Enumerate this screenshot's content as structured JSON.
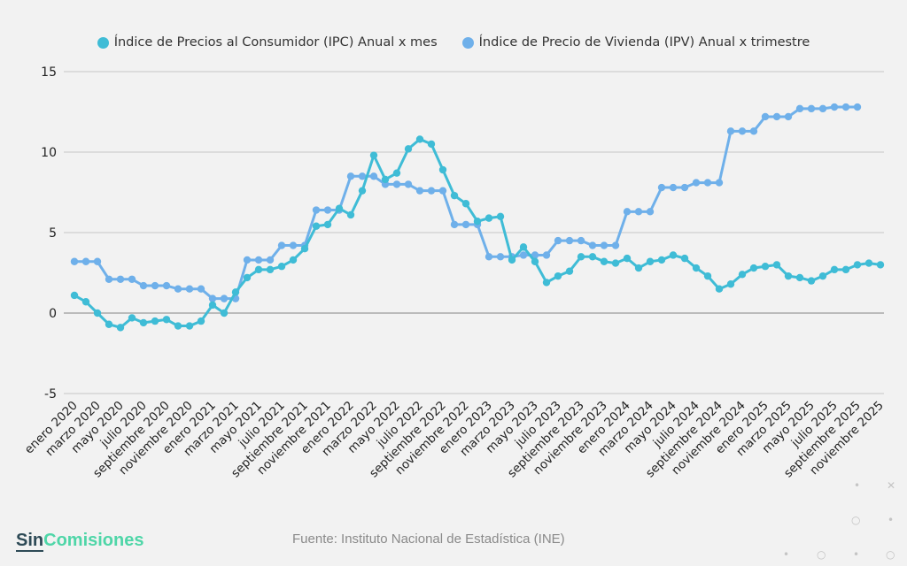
{
  "chart_data": {
    "type": "line",
    "title": "",
    "xlabel": "",
    "ylabel": "",
    "ylim": [
      -5,
      15
    ],
    "yticks": [
      -5,
      0,
      5,
      10,
      15
    ],
    "grid": true,
    "legend_position": "top",
    "x": [
      "enero 2020",
      "febrero 2020",
      "marzo 2020",
      "abril 2020",
      "mayo 2020",
      "junio 2020",
      "julio 2020",
      "agosto 2020",
      "septiembre 2020",
      "octubre 2020",
      "noviembre 2020",
      "diciembre 2020",
      "enero 2021",
      "febrero 2021",
      "marzo 2021",
      "abril 2021",
      "mayo 2021",
      "junio 2021",
      "julio 2021",
      "agosto 2021",
      "septiembre 2021",
      "octubre 2021",
      "noviembre 2021",
      "diciembre 2021",
      "enero 2022",
      "febrero 2022",
      "marzo 2022",
      "abril 2022",
      "mayo 2022",
      "junio 2022",
      "julio 2022",
      "agosto 2022",
      "septiembre 2022",
      "octubre 2022",
      "noviembre 2022",
      "diciembre 2022",
      "enero 2023",
      "febrero 2023",
      "marzo 2023",
      "abril 2023",
      "mayo 2023",
      "junio 2023",
      "julio 2023",
      "agosto 2023",
      "septiembre 2023",
      "octubre 2023",
      "noviembre 2023",
      "diciembre 2023",
      "enero 2024",
      "febrero 2024",
      "marzo 2024",
      "abril 2024",
      "mayo 2024",
      "junio 2024",
      "julio 2024",
      "agosto 2024",
      "septiembre 2024",
      "octubre 2024",
      "noviembre 2024",
      "diciembre 2024",
      "enero 2025",
      "febrero 2025",
      "marzo 2025",
      "abril 2025",
      "mayo 2025",
      "junio 2025",
      "julio 2025",
      "agosto 2025",
      "septiembre 2025",
      "octubre 2025",
      "noviembre 2025"
    ],
    "series": [
      {
        "name": "Índice de Precios al Consumidor (IPC) Anual x mes",
        "color": "#3fbcd6",
        "values": [
          1.1,
          0.7,
          0.0,
          -0.7,
          -0.9,
          -0.3,
          -0.6,
          -0.5,
          -0.4,
          -0.8,
          -0.8,
          -0.5,
          0.5,
          0.0,
          1.3,
          2.2,
          2.7,
          2.7,
          2.9,
          3.3,
          4.0,
          5.4,
          5.5,
          6.5,
          6.1,
          7.6,
          9.8,
          8.3,
          8.7,
          10.2,
          10.8,
          10.5,
          8.9,
          7.3,
          6.8,
          5.7,
          5.9,
          6.0,
          3.3,
          4.1,
          3.2,
          1.9,
          2.3,
          2.6,
          3.5,
          3.5,
          3.2,
          3.1,
          3.4,
          2.8,
          3.2,
          3.3,
          3.6,
          3.4,
          2.8,
          2.3,
          1.5,
          1.8,
          2.4,
          2.8,
          2.9,
          3.0,
          2.3,
          2.2,
          2.0,
          2.3,
          2.7,
          2.7,
          3.0,
          3.1,
          3.0
        ]
      },
      {
        "name": "Índice de Precio de Vivienda (IPV) Anual x trimestre",
        "color": "#6fb0ea",
        "values": [
          3.2,
          3.2,
          3.2,
          2.1,
          2.1,
          2.1,
          1.7,
          1.7,
          1.7,
          1.5,
          1.5,
          1.5,
          0.9,
          0.9,
          0.9,
          3.3,
          3.3,
          3.3,
          4.2,
          4.2,
          4.2,
          6.4,
          6.4,
          6.4,
          8.5,
          8.5,
          8.5,
          8.0,
          8.0,
          8.0,
          7.6,
          7.6,
          7.6,
          5.5,
          5.5,
          5.5,
          3.5,
          3.5,
          3.5,
          3.6,
          3.6,
          3.6,
          4.5,
          4.5,
          4.5,
          4.2,
          4.2,
          4.2,
          6.3,
          6.3,
          6.3,
          7.8,
          7.8,
          7.8,
          8.1,
          8.1,
          8.1,
          11.3,
          11.3,
          11.3,
          12.2,
          12.2,
          12.2,
          12.7,
          12.7,
          12.7,
          12.8,
          12.8,
          12.8,
          null,
          null
        ]
      }
    ]
  },
  "footer": {
    "logo_part1": "Sin",
    "logo_part2": "Comisiones",
    "source": "Fuente: Instituto Nacional de Estadística (INE)"
  },
  "colors": {
    "background": "#f2f2f2",
    "logo_dark": "#2d4a56",
    "logo_green": "#4fd6a8"
  }
}
